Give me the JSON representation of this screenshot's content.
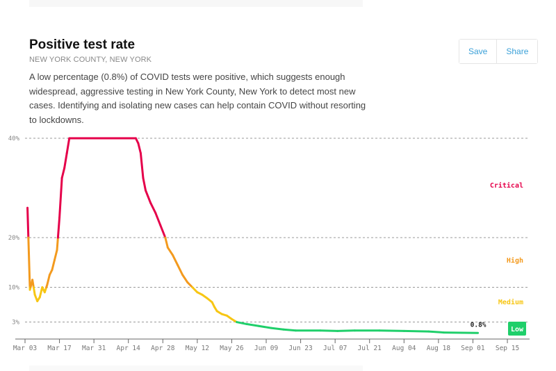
{
  "header": {
    "title": "Positive test rate",
    "subtitle": "NEW YORK COUNTY, NEW YORK",
    "description": "A low percentage (0.8%) of COVID tests were positive, which suggests enough widespread, aggressive testing in New York County, New York to detect most new cases. Identifying and isolating new cases can help contain COVID without resorting to lockdowns.",
    "save_label": "Save",
    "share_label": "Share"
  },
  "chart_data": {
    "type": "line",
    "title": "Positive test rate",
    "xlabel": "",
    "ylabel": "",
    "ylim": [
      0,
      40
    ],
    "y_ticks": [
      {
        "value": 40,
        "label": "40%"
      },
      {
        "value": 20,
        "label": "20%"
      },
      {
        "value": 10,
        "label": "10%"
      },
      {
        "value": 3,
        "label": "3%"
      }
    ],
    "x_ticks": [
      "Mar 03",
      "Mar 17",
      "Mar 31",
      "Apr 14",
      "Apr 28",
      "May 12",
      "May 26",
      "Jun 09",
      "Jun 23",
      "Jul 07",
      "Jul 21",
      "Aug 04",
      "Aug 18",
      "Sep 01",
      "Sep 15"
    ],
    "grid": "horizontal dashed",
    "zones": [
      {
        "label": "Critical",
        "min": 20,
        "max": 40,
        "color": "#e5004a"
      },
      {
        "label": "High",
        "min": 10,
        "max": 20,
        "color": "#f39a1e"
      },
      {
        "label": "Medium",
        "min": 3,
        "max": 10,
        "color": "#f7c614"
      },
      {
        "label": "Low",
        "min": 0,
        "max": 3,
        "color": "#1fcf6a"
      }
    ],
    "last_value_label": "0.8%",
    "points": [
      [
        "03-04",
        26
      ],
      [
        "03-05",
        9.5
      ],
      [
        "03-06",
        11.5
      ],
      [
        "03-07",
        8.5
      ],
      [
        "03-08",
        7.2
      ],
      [
        "03-09",
        8
      ],
      [
        "03-10",
        10
      ],
      [
        "03-11",
        9
      ],
      [
        "03-12",
        10.5
      ],
      [
        "03-13",
        12.5
      ],
      [
        "03-14",
        13.5
      ],
      [
        "03-15",
        15.5
      ],
      [
        "03-16",
        17.5
      ],
      [
        "03-17",
        24
      ],
      [
        "03-18",
        32
      ],
      [
        "03-19",
        34
      ],
      [
        "03-20",
        37
      ],
      [
        "03-21",
        40
      ],
      [
        "04-17",
        40
      ],
      [
        "04-18",
        39
      ],
      [
        "04-19",
        37
      ],
      [
        "04-20",
        32
      ],
      [
        "04-21",
        29.5
      ],
      [
        "04-23",
        27
      ],
      [
        "04-25",
        25
      ],
      [
        "04-27",
        22.5
      ],
      [
        "04-29",
        20
      ],
      [
        "04-30",
        18
      ],
      [
        "05-02",
        16.5
      ],
      [
        "05-04",
        14.5
      ],
      [
        "05-06",
        12.5
      ],
      [
        "05-08",
        11
      ],
      [
        "05-10",
        10
      ],
      [
        "05-12",
        9
      ],
      [
        "05-14",
        8.5
      ],
      [
        "05-16",
        7.8
      ],
      [
        "05-18",
        7
      ],
      [
        "05-19",
        6
      ],
      [
        "05-20",
        5.2
      ],
      [
        "05-22",
        4.6
      ],
      [
        "05-24",
        4.3
      ],
      [
        "05-26",
        3.6
      ],
      [
        "05-28",
        3
      ],
      [
        "06-01",
        2.6
      ],
      [
        "06-06",
        2.2
      ],
      [
        "06-11",
        1.8
      ],
      [
        "06-16",
        1.5
      ],
      [
        "06-21",
        1.3
      ],
      [
        "07-01",
        1.3
      ],
      [
        "07-08",
        1.2
      ],
      [
        "07-15",
        1.3
      ],
      [
        "07-25",
        1.3
      ],
      [
        "08-04",
        1.2
      ],
      [
        "08-14",
        1.1
      ],
      [
        "08-20",
        0.9
      ],
      [
        "09-03",
        0.8
      ]
    ]
  }
}
